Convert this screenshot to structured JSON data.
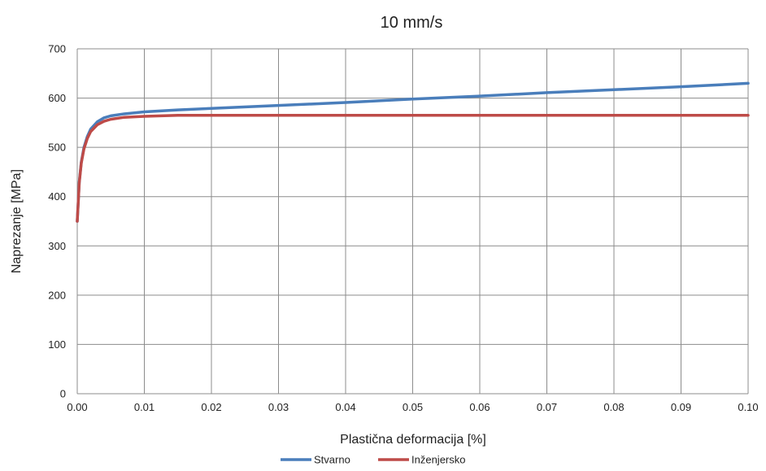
{
  "chart_data": {
    "type": "line",
    "title": "10 mm/s",
    "xlabel": "Plastična deformacija [%]",
    "ylabel": "Naprezanje [MPa]",
    "xlim": [
      0,
      0.1
    ],
    "ylim": [
      0,
      700
    ],
    "x_ticks": [
      "0.00",
      "0.01",
      "0.02",
      "0.03",
      "0.04",
      "0.05",
      "0.06",
      "0.07",
      "0.08",
      "0.09",
      "0.10"
    ],
    "y_ticks": [
      "0",
      "100",
      "200",
      "300",
      "400",
      "500",
      "600",
      "700"
    ],
    "grid": true,
    "legend_position": "bottom",
    "series": [
      {
        "name": "Stvarno",
        "color": "#4a7ebb",
        "x": [
          0,
          0.0003,
          0.0006,
          0.001,
          0.0015,
          0.002,
          0.003,
          0.004,
          0.005,
          0.007,
          0.01,
          0.015,
          0.02,
          0.03,
          0.04,
          0.05,
          0.06,
          0.07,
          0.08,
          0.09,
          0.1
        ],
        "y": [
          350,
          430,
          470,
          500,
          522,
          537,
          552,
          560,
          564,
          568,
          572,
          576,
          579,
          585,
          591,
          598,
          604,
          611,
          617,
          623,
          630
        ]
      },
      {
        "name": "Inženjersko",
        "color": "#be4b48",
        "x": [
          0,
          0.0003,
          0.0006,
          0.001,
          0.0015,
          0.002,
          0.003,
          0.004,
          0.005,
          0.007,
          0.01,
          0.015,
          0.02,
          0.03,
          0.04,
          0.05,
          0.06,
          0.07,
          0.08,
          0.09,
          0.1
        ],
        "y": [
          350,
          428,
          468,
          497,
          518,
          532,
          546,
          553,
          557,
          561,
          563,
          565,
          565,
          565,
          565,
          565,
          565,
          565,
          565,
          565,
          565
        ]
      }
    ]
  }
}
